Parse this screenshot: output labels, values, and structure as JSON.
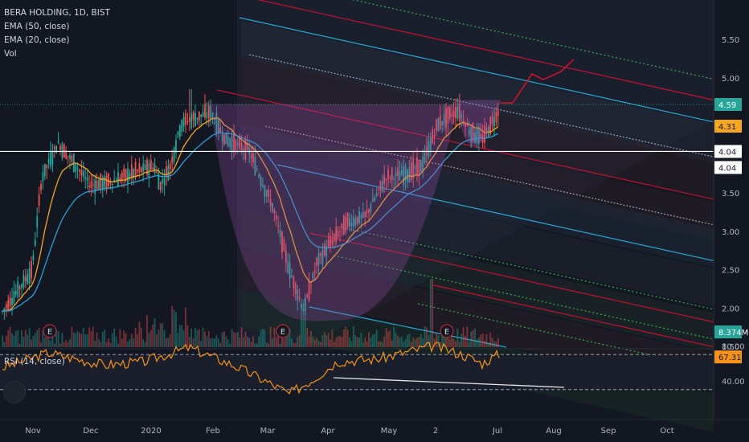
{
  "legend": {
    "symbol": "BERA HOLDING, 1D, BIST",
    "ema50": "EMA (50, close)",
    "ema20": "EMA (20, close)",
    "vol": "Vol",
    "rsi": "RSI (14, close)"
  },
  "colors": {
    "background": "#131722",
    "up": "#26a69a",
    "down": "#ef5350",
    "ema20": "#f5a623",
    "ema50": "#29a3d6",
    "rsi": "#f7931a",
    "fib_red": "#c8102e",
    "fib_blue": "#2aa7d4",
    "fib_green": "#36b24a",
    "cup": "#9c4fb0"
  },
  "chart_data": [
    {
      "type": "candlestick",
      "title": "BERA HOLDING, 1D, BIST",
      "x_ticks": [
        "Nov",
        "Dec",
        "2020",
        "Feb",
        "Mar",
        "Apr",
        "May",
        "2",
        "Jul",
        "Aug",
        "Sep",
        "Oct"
      ],
      "y_ticks": [
        1.5,
        2.0,
        2.5,
        3.0,
        3.5,
        4.0,
        4.5,
        5.0,
        5.5
      ],
      "ylim": [
        1.5,
        5.9
      ],
      "price_labels": [
        "4.59",
        "4.31",
        "4.04",
        "4.04",
        "8.374M"
      ],
      "price_points": [
        [
          "Oct 28",
          1.95
        ],
        [
          "Nov 05",
          2.5
        ],
        [
          "Nov 10",
          3.7
        ],
        [
          "Nov 15",
          4.15
        ],
        [
          "Nov 22",
          3.85
        ],
        [
          "Dec 02",
          3.6
        ],
        [
          "Dec 15",
          3.65
        ],
        [
          "Dec 25",
          3.8
        ],
        [
          "2020-01-01",
          3.85
        ],
        [
          "Jan 05",
          3.6
        ],
        [
          "Jan 12",
          3.85
        ],
        [
          "Jan 18",
          4.4
        ],
        [
          "Jan 25",
          4.45
        ],
        [
          "Feb 01",
          4.55
        ],
        [
          "Feb 10",
          4.2
        ],
        [
          "Feb 20",
          4.05
        ],
        [
          "Mar 01",
          3.3
        ],
        [
          "Mar 10",
          2.5
        ],
        [
          "Mar 20",
          1.97
        ],
        [
          "Mar 28",
          2.6
        ],
        [
          "Apr 05",
          2.8
        ],
        [
          "Apr 15",
          3.1
        ],
        [
          "Apr 25",
          3.2
        ],
        [
          "May 05",
          3.7
        ],
        [
          "May 15",
          3.75
        ],
        [
          "May 25",
          3.85
        ],
        [
          "Jun 01",
          4.4
        ],
        [
          "Jun 08",
          4.58
        ],
        [
          "Jun 15",
          4.3
        ],
        [
          "Jun 22",
          4.2
        ],
        [
          "Jul 01",
          4.59
        ]
      ],
      "series": [
        {
          "name": "EMA (20, close)",
          "color": "#f5a623"
        },
        {
          "name": "EMA (50, close)",
          "color": "#29a3d6"
        },
        {
          "name": "Vol",
          "last": "8.374M"
        }
      ],
      "earnings_markers": [
        "E",
        "E",
        "E"
      ]
    },
    {
      "type": "line",
      "title": "RSI (14, close)",
      "ylim": [
        25,
        85
      ],
      "y_ticks": [
        40,
        80
      ],
      "hlines": [
        70,
        30
      ],
      "last_value": "67.31",
      "tick_labels": [
        "80.00",
        "40.00"
      ]
    }
  ]
}
